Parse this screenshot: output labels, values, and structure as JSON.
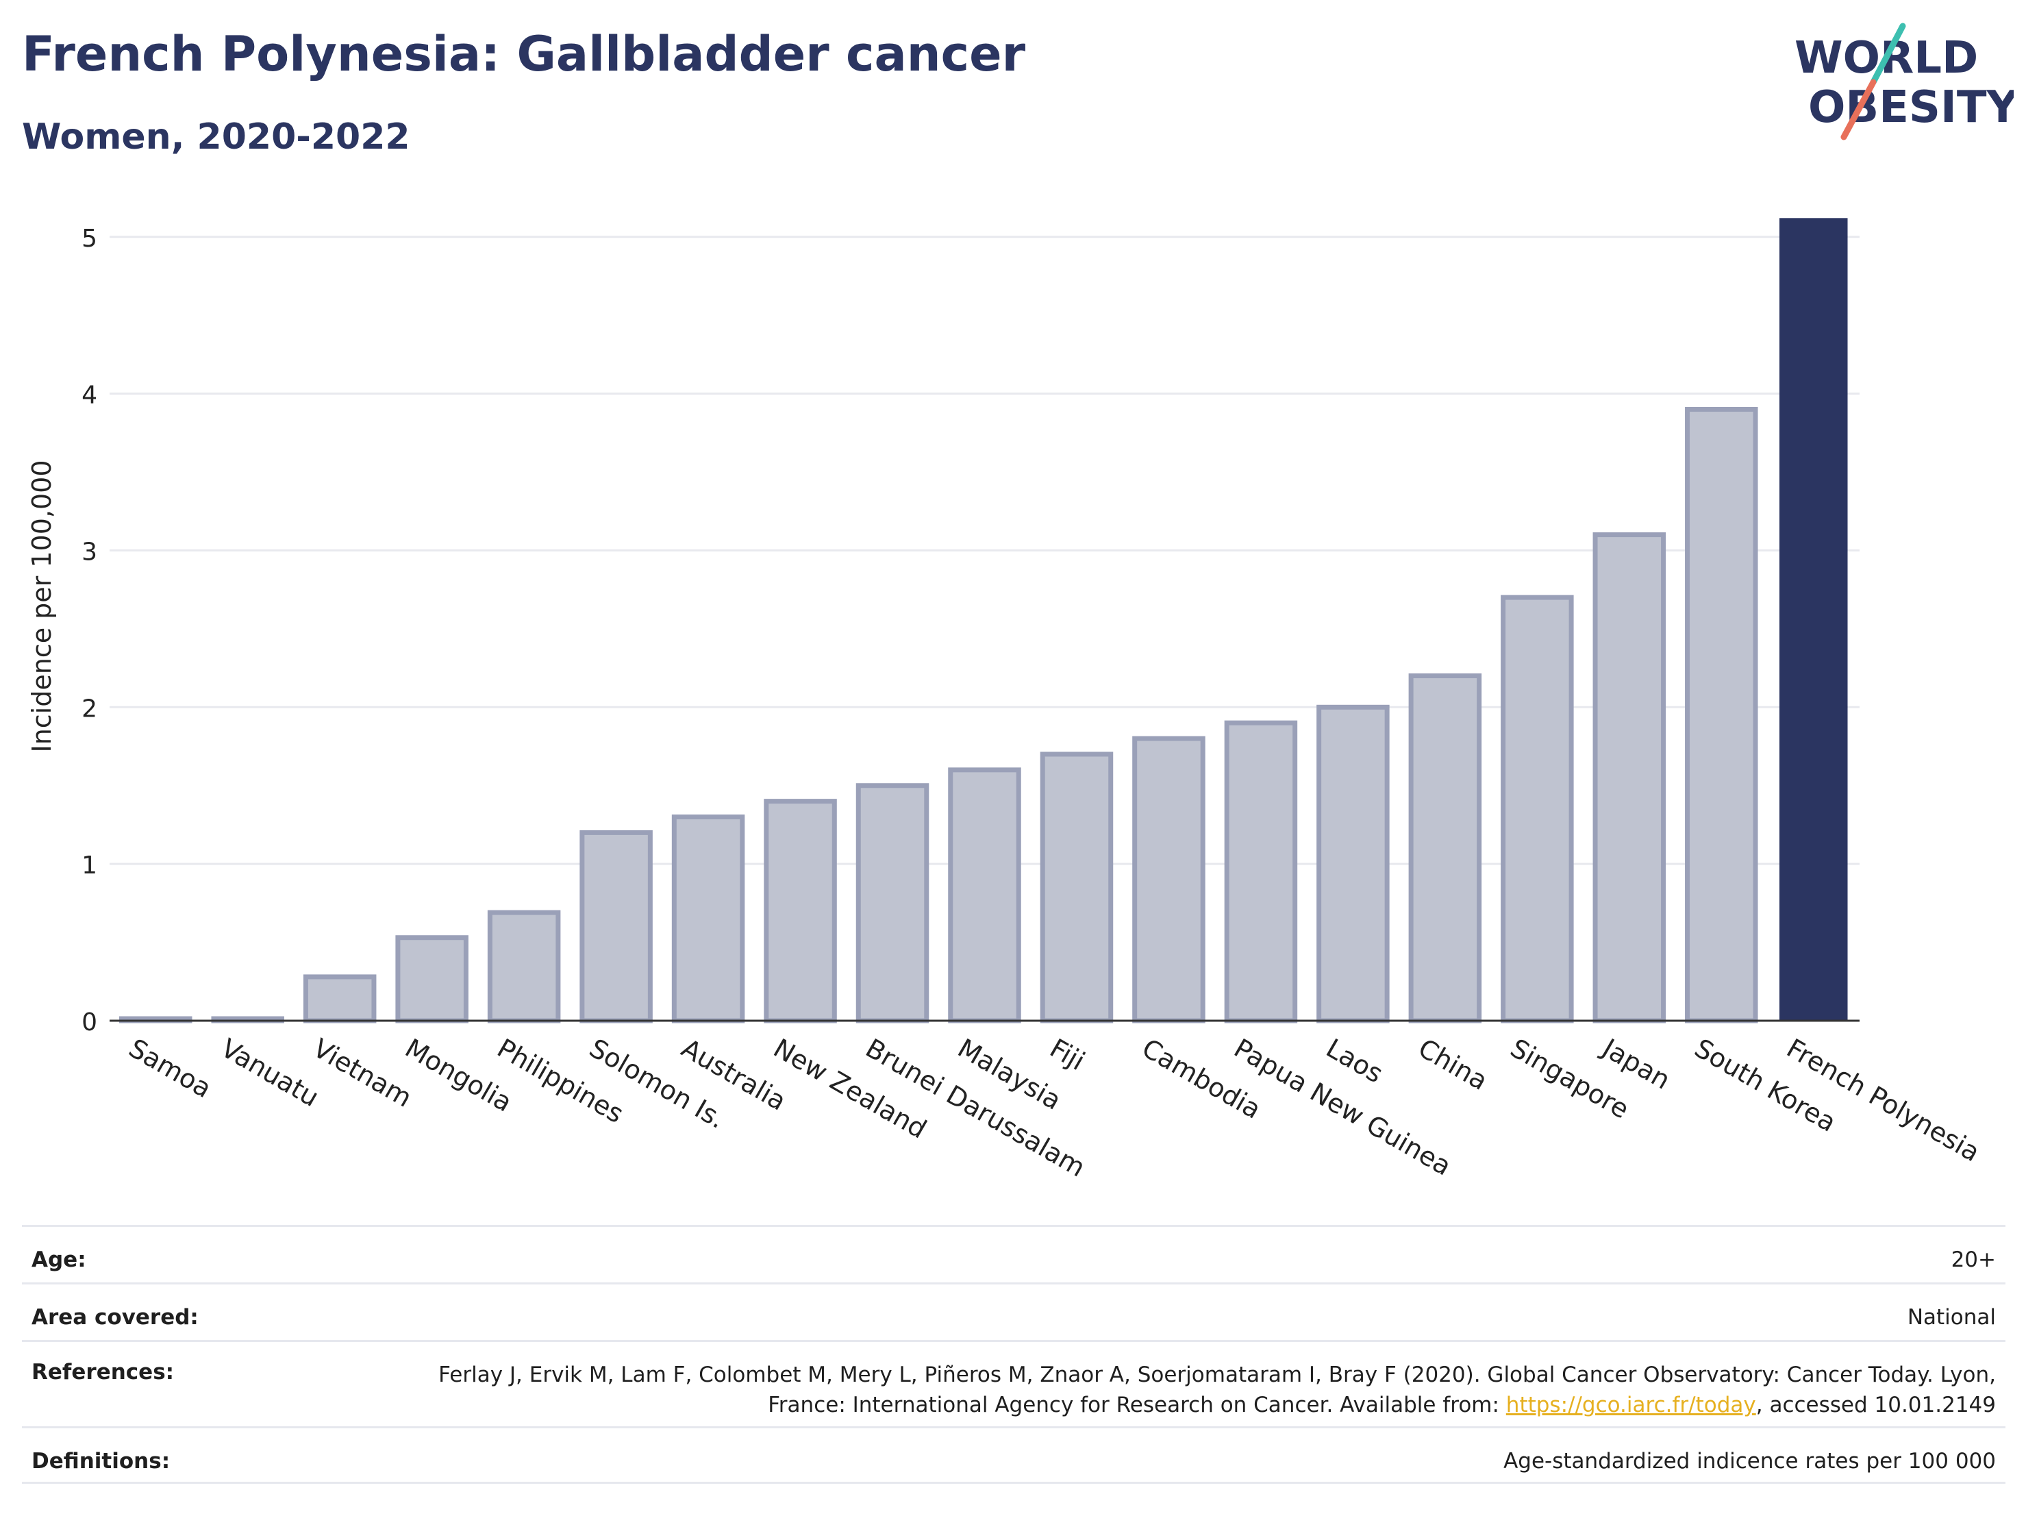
{
  "header": {
    "title": "French Polynesia: Gallbladder cancer",
    "subtitle": "Women, 2020-2022"
  },
  "logo": {
    "line1": "WORLD",
    "line2": "OBESITY",
    "text_color": "#2b3561",
    "accent_teal": "#3dbfb0",
    "accent_coral": "#e8705a"
  },
  "colors": {
    "highlight_bar": "#2b3561",
    "other_bar_fill": "#bfc3d0",
    "other_bar_stroke": "#9aa0b8",
    "gridline": "#e8e9ee",
    "link": "#e6b020"
  },
  "chart_data": {
    "type": "bar",
    "categories": [
      "Samoa",
      "Vanuatu",
      "Vietnam",
      "Mongolia",
      "Philippines",
      "Solomon Is.",
      "Australia",
      "New Zealand",
      "Brunei Darussalam",
      "Malaysia",
      "Fiji",
      "Cambodia",
      "Papua New Guinea",
      "Laos",
      "China",
      "Singapore",
      "Japan",
      "South Korea",
      "French Polynesia"
    ],
    "values": [
      0.01,
      0.01,
      0.28,
      0.53,
      0.69,
      1.2,
      1.3,
      1.4,
      1.5,
      1.6,
      1.7,
      1.8,
      1.9,
      2.0,
      2.2,
      2.7,
      3.1,
      3.9,
      5.12
    ],
    "highlight": "French Polynesia",
    "ylabel": "Incidence per 100,000",
    "ylim": [
      0,
      5.2
    ],
    "yticks": [
      0,
      1,
      2,
      3,
      4,
      5
    ],
    "grid": true
  },
  "meta": {
    "age": {
      "label": "Age:",
      "value": "20+"
    },
    "area": {
      "label": "Area covered:",
      "value": "National"
    },
    "references": {
      "label": "References:",
      "text_before": "Ferlay J, Ervik M, Lam F, Colombet M, Mery L, Piñeros M, Znaor A, Soerjomataram I, Bray F (2020). Global Cancer Observatory: Cancer Today. Lyon, France: International Agency for Research on Cancer. Available from: ",
      "link_text": "https://gco.iarc.fr/today",
      "text_after": ", accessed 10.01.2149"
    },
    "definitions": {
      "label": "Definitions:",
      "value": "Age-standardized indicence rates per 100 000"
    }
  }
}
